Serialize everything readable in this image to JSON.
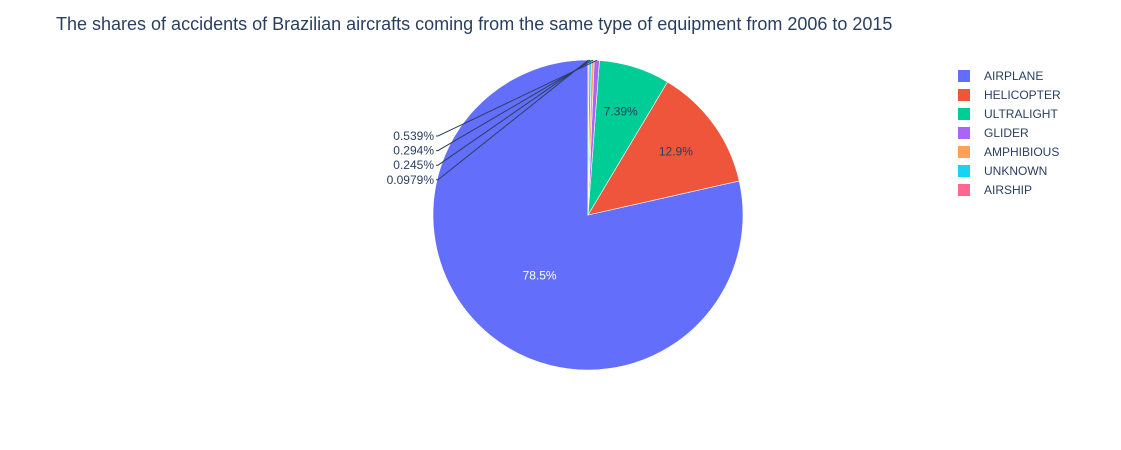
{
  "chart_data": {
    "type": "pie",
    "title": "The shares of accidents of Brazilian aircrafts coming from the same type of equipment from 2006 to 2015",
    "slices": [
      {
        "label": "AIRPLANE",
        "value": 78.5,
        "text": "78.5%",
        "color": "#636efa"
      },
      {
        "label": "HELICOPTER",
        "value": 12.9,
        "text": "12.9%",
        "color": "#ef553b"
      },
      {
        "label": "ULTRALIGHT",
        "value": 7.39,
        "text": "7.39%",
        "color": "#00cc96"
      },
      {
        "label": "GLIDER",
        "value": 0.539,
        "text": "0.539%",
        "color": "#ab63fa"
      },
      {
        "label": "AMPHIBIOUS",
        "value": 0.294,
        "text": "0.294%",
        "color": "#ffa15a"
      },
      {
        "label": "UNKNOWN",
        "value": 0.245,
        "text": "0.245%",
        "color": "#19d3f3"
      },
      {
        "label": "AIRSHIP",
        "value": 0.0979,
        "text": "0.0979%",
        "color": "#ff6692"
      }
    ],
    "legend_position": "top-right",
    "start_angle": "12 o'clock",
    "direction": "clockwise"
  }
}
